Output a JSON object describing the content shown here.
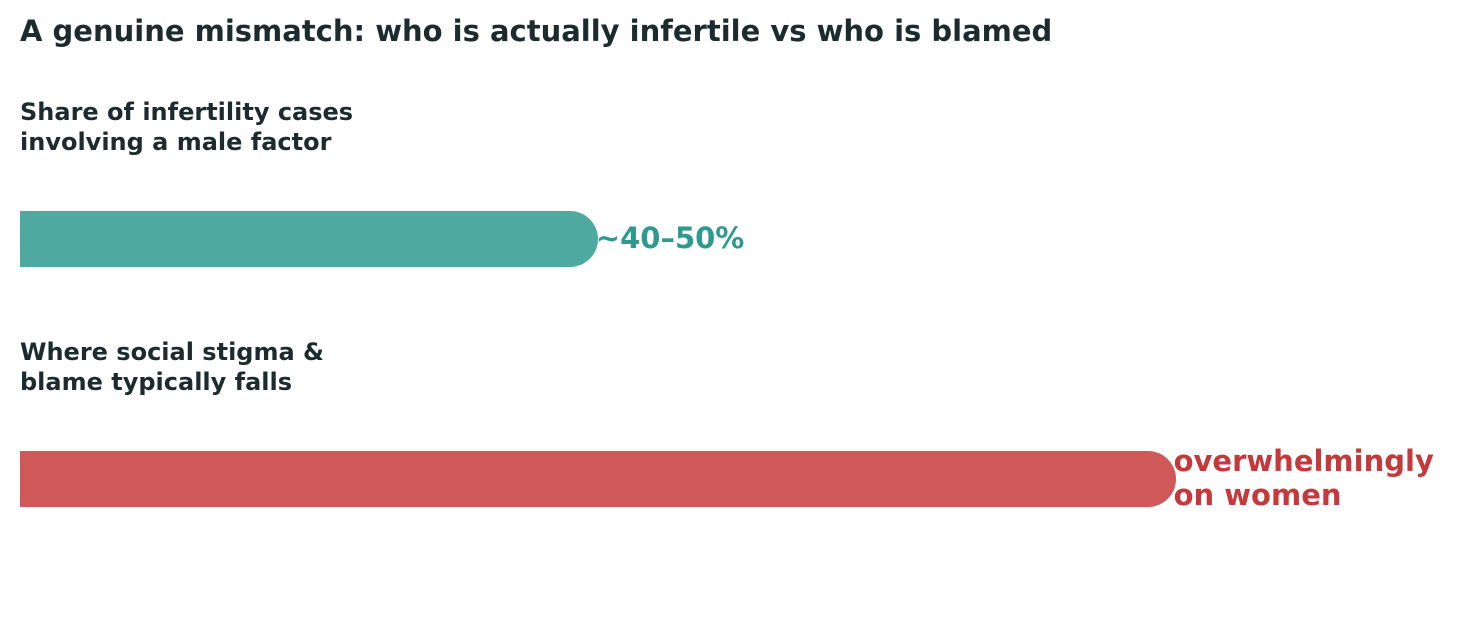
{
  "chart_data": {
    "type": "bar",
    "orientation": "horizontal",
    "title": "A genuine mismatch: who is actually infertile vs who is blamed",
    "xlabel": "",
    "ylabel": "",
    "grid": false,
    "categories": [
      "Share of infertility cases\ninvolving a male factor",
      "Where social stigma &\nblame typically falls"
    ],
    "values": [
      45,
      90
    ],
    "value_labels": [
      "~40–50%",
      "overwhelmingly\non women"
    ],
    "colors": [
      "#4ea9a0",
      "#cf5858"
    ],
    "value_label_colors": [
      "#2e9a8e",
      "#c4393c"
    ],
    "xlim": [
      0,
      100
    ]
  }
}
